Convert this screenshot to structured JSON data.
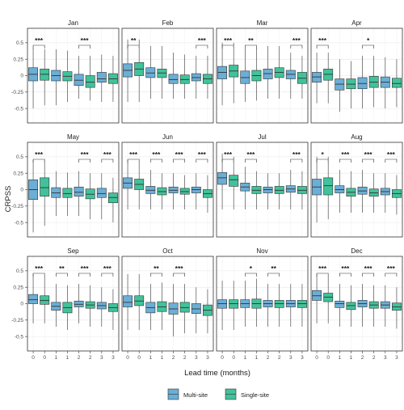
{
  "chart_data": {
    "type": "boxplot",
    "ylabel": "CRPSS",
    "xlabel": "Lead time (months)",
    "ylim": [
      -0.72,
      0.72
    ],
    "yticks": [
      -0.5,
      -0.25,
      0,
      0.25,
      0.5
    ],
    "ytick_labels": [
      "-0.5",
      "-0.25",
      "0",
      "0.25",
      "0.5"
    ],
    "x_categories": [
      "0",
      "1",
      "2",
      "3"
    ],
    "grid": true,
    "legend": {
      "position": "bottom",
      "entries": [
        {
          "name": "Multi-site",
          "color": "#6baed6"
        },
        {
          "name": "Single-site",
          "color": "#41c29a"
        }
      ]
    },
    "series": [
      {
        "name": "Multi-site"
      },
      {
        "name": "Single-site"
      }
    ],
    "panels": [
      {
        "month": "Jan",
        "sig": [
          "***",
          "",
          "***",
          ""
        ],
        "multi": [
          [
            -0.5,
            -0.08,
            0.02,
            0.12,
            0.42
          ],
          [
            -0.45,
            -0.08,
            0,
            0.08,
            0.4
          ],
          [
            -0.35,
            -0.15,
            -0.07,
            0.02,
            0.3
          ],
          [
            -0.4,
            -0.1,
            -0.05,
            0.05,
            0.32
          ]
        ],
        "single": [
          [
            -0.45,
            -0.07,
            0.02,
            0.1,
            0.4
          ],
          [
            -0.4,
            -0.08,
            -0.01,
            0.06,
            0.38
          ],
          [
            -0.38,
            -0.18,
            -0.1,
            0,
            0.3
          ],
          [
            -0.4,
            -0.12,
            -0.05,
            0.03,
            0.3
          ]
        ]
      },
      {
        "month": "Feb",
        "sig": [
          "**",
          "",
          "",
          "***"
        ],
        "multi": [
          [
            -0.4,
            -0.02,
            0.08,
            0.18,
            0.55
          ],
          [
            -0.35,
            -0.03,
            0.04,
            0.12,
            0.45
          ],
          [
            -0.35,
            -0.12,
            -0.06,
            0.02,
            0.35
          ],
          [
            -0.35,
            -0.08,
            -0.03,
            0.03,
            0.3
          ]
        ],
        "single": [
          [
            -0.4,
            0,
            0.1,
            0.2,
            0.55
          ],
          [
            -0.35,
            -0.03,
            0.04,
            0.1,
            0.45
          ],
          [
            -0.35,
            -0.12,
            -0.06,
            0.01,
            0.32
          ],
          [
            -0.35,
            -0.12,
            -0.05,
            0.02,
            0.3
          ]
        ]
      },
      {
        "month": "Mar",
        "sig": [
          "***",
          "**",
          "",
          "***"
        ],
        "multi": [
          [
            -0.45,
            -0.05,
            0.05,
            0.14,
            0.5
          ],
          [
            -0.4,
            -0.12,
            -0.03,
            0.07,
            0.42
          ],
          [
            -0.35,
            -0.05,
            0.03,
            0.1,
            0.45
          ],
          [
            -0.35,
            -0.05,
            0.02,
            0.08,
            0.35
          ]
        ],
        "single": [
          [
            -0.42,
            -0.02,
            0.07,
            0.16,
            0.5
          ],
          [
            -0.38,
            -0.08,
            0,
            0.08,
            0.42
          ],
          [
            -0.35,
            -0.03,
            0.05,
            0.12,
            0.45
          ],
          [
            -0.35,
            -0.12,
            -0.04,
            0.05,
            0.3
          ]
        ]
      },
      {
        "month": "Apr",
        "sig": [
          "***",
          "",
          "*",
          ""
        ],
        "multi": [
          [
            -0.42,
            -0.1,
            -0.02,
            0.05,
            0.35
          ],
          [
            -0.55,
            -0.22,
            -0.13,
            -0.05,
            0.25
          ],
          [
            -0.5,
            -0.2,
            -0.12,
            -0.03,
            0.3
          ],
          [
            -0.5,
            -0.18,
            -0.1,
            -0.02,
            0.28
          ]
        ],
        "single": [
          [
            -0.42,
            -0.07,
            0.02,
            0.1,
            0.35
          ],
          [
            -0.5,
            -0.2,
            -0.13,
            -0.05,
            0.22
          ],
          [
            -0.48,
            -0.18,
            -0.1,
            -0.01,
            0.3
          ],
          [
            -0.48,
            -0.18,
            -0.12,
            -0.04,
            0.25
          ]
        ]
      },
      {
        "month": "May",
        "sig": [
          "***",
          "",
          "***",
          "***"
        ],
        "multi": [
          [
            -0.65,
            -0.15,
            0,
            0.15,
            0.45
          ],
          [
            -0.4,
            -0.12,
            -0.05,
            0.03,
            0.28
          ],
          [
            -0.4,
            -0.1,
            -0.04,
            0.04,
            0.28
          ],
          [
            -0.45,
            -0.12,
            -0.06,
            0.02,
            0.25
          ]
        ],
        "single": [
          [
            -0.55,
            -0.1,
            0.03,
            0.18,
            0.45
          ],
          [
            -0.4,
            -0.12,
            -0.06,
            0.02,
            0.26
          ],
          [
            -0.45,
            -0.14,
            -0.07,
            0.01,
            0.25
          ],
          [
            -0.5,
            -0.2,
            -0.12,
            -0.05,
            0.18
          ]
        ]
      },
      {
        "month": "Jun",
        "sig": [
          "***",
          "***",
          "***",
          "***"
        ],
        "multi": [
          [
            -0.3,
            0.02,
            0.1,
            0.18,
            0.45
          ],
          [
            -0.3,
            -0.06,
            -0.01,
            0.05,
            0.3
          ],
          [
            -0.3,
            -0.05,
            -0.01,
            0.04,
            0.25
          ],
          [
            -0.3,
            -0.05,
            0,
            0.04,
            0.25
          ]
        ],
        "single": [
          [
            -0.3,
            0,
            0.08,
            0.16,
            0.42
          ],
          [
            -0.3,
            -0.08,
            -0.03,
            0.03,
            0.25
          ],
          [
            -0.3,
            -0.07,
            -0.03,
            0.02,
            0.22
          ],
          [
            -0.35,
            -0.12,
            -0.06,
            0,
            0.22
          ]
        ]
      },
      {
        "month": "Jul",
        "sig": [
          "***",
          "***",
          "",
          "***"
        ],
        "multi": [
          [
            -0.3,
            0.08,
            0.18,
            0.26,
            0.55
          ],
          [
            -0.3,
            -0.02,
            0.04,
            0.1,
            0.35
          ],
          [
            -0.3,
            -0.05,
            0,
            0.04,
            0.25
          ],
          [
            -0.3,
            -0.04,
            0.01,
            0.06,
            0.3
          ]
        ],
        "single": [
          [
            -0.3,
            0.05,
            0.15,
            0.22,
            0.5
          ],
          [
            -0.3,
            -0.06,
            -0.01,
            0.05,
            0.28
          ],
          [
            -0.3,
            -0.06,
            -0.01,
            0.05,
            0.25
          ],
          [
            -0.3,
            -0.06,
            -0.01,
            0.05,
            0.28
          ]
        ]
      },
      {
        "month": "Aug",
        "sig": [
          "*",
          "***",
          "***",
          "***"
        ],
        "multi": [
          [
            -0.5,
            -0.08,
            0.04,
            0.16,
            0.5
          ],
          [
            -0.35,
            -0.05,
            0,
            0.06,
            0.3
          ],
          [
            -0.35,
            -0.07,
            -0.02,
            0.04,
            0.3
          ],
          [
            -0.35,
            -0.08,
            -0.03,
            0.02,
            0.25
          ]
        ],
        "single": [
          [
            -0.45,
            -0.08,
            0.06,
            0.18,
            0.5
          ],
          [
            -0.35,
            -0.1,
            -0.04,
            0.02,
            0.28
          ],
          [
            -0.35,
            -0.1,
            -0.05,
            0.01,
            0.25
          ],
          [
            -0.38,
            -0.12,
            -0.06,
            0,
            0.22
          ]
        ]
      },
      {
        "month": "Sep",
        "sig": [
          "***",
          "**",
          "***",
          "***"
        ],
        "multi": [
          [
            -0.3,
            0,
            0.06,
            0.14,
            0.45
          ],
          [
            -0.35,
            -0.1,
            -0.04,
            0.02,
            0.3
          ],
          [
            -0.3,
            -0.05,
            -0.01,
            0.04,
            0.3
          ],
          [
            -0.35,
            -0.08,
            -0.03,
            0.02,
            0.25
          ]
        ],
        "single": [
          [
            -0.3,
            -0.01,
            0.05,
            0.12,
            0.42
          ],
          [
            -0.4,
            -0.14,
            -0.06,
            0.02,
            0.28
          ],
          [
            -0.35,
            -0.07,
            -0.02,
            0.03,
            0.28
          ],
          [
            -0.4,
            -0.12,
            -0.06,
            0,
            0.22
          ]
        ]
      },
      {
        "month": "Oct",
        "sig": [
          "",
          "**",
          "***",
          ""
        ],
        "multi": [
          [
            -0.4,
            -0.05,
            0.02,
            0.12,
            0.45
          ],
          [
            -0.4,
            -0.14,
            -0.06,
            0.02,
            0.3
          ],
          [
            -0.5,
            -0.16,
            -0.08,
            0.01,
            0.3
          ],
          [
            -0.45,
            -0.15,
            -0.08,
            0,
            0.25
          ]
        ],
        "single": [
          [
            -0.4,
            -0.03,
            0.04,
            0.12,
            0.45
          ],
          [
            -0.4,
            -0.12,
            -0.05,
            0.03,
            0.32
          ],
          [
            -0.45,
            -0.13,
            -0.06,
            0.02,
            0.3
          ],
          [
            -0.45,
            -0.18,
            -0.1,
            -0.02,
            0.22
          ]
        ]
      },
      {
        "month": "Nov",
        "sig": [
          "",
          "*",
          "**",
          ""
        ],
        "multi": [
          [
            -0.4,
            -0.07,
            0,
            0.06,
            0.35
          ],
          [
            -0.35,
            -0.06,
            0,
            0.06,
            0.35
          ],
          [
            -0.35,
            -0.05,
            0,
            0.05,
            0.3
          ],
          [
            -0.35,
            -0.05,
            0,
            0.05,
            0.3
          ]
        ],
        "single": [
          [
            -0.4,
            -0.07,
            0,
            0.06,
            0.35
          ],
          [
            -0.35,
            -0.07,
            0,
            0.07,
            0.38
          ],
          [
            -0.35,
            -0.06,
            0,
            0.05,
            0.3
          ],
          [
            -0.35,
            -0.06,
            0,
            0.05,
            0.3
          ]
        ]
      },
      {
        "month": "Dec",
        "sig": [
          "***",
          "***",
          "***",
          "***"
        ],
        "multi": [
          [
            -0.3,
            0.05,
            0.12,
            0.2,
            0.45
          ],
          [
            -0.35,
            -0.06,
            0,
            0.04,
            0.3
          ],
          [
            -0.35,
            -0.05,
            0,
            0.05,
            0.3
          ],
          [
            -0.35,
            -0.07,
            -0.02,
            0.03,
            0.28
          ]
        ],
        "single": [
          [
            -0.3,
            0.03,
            0.1,
            0.16,
            0.42
          ],
          [
            -0.35,
            -0.09,
            -0.03,
            0.02,
            0.28
          ],
          [
            -0.35,
            -0.07,
            -0.02,
            0.03,
            0.28
          ],
          [
            -0.38,
            -0.1,
            -0.05,
            0.01,
            0.25
          ]
        ]
      }
    ]
  }
}
